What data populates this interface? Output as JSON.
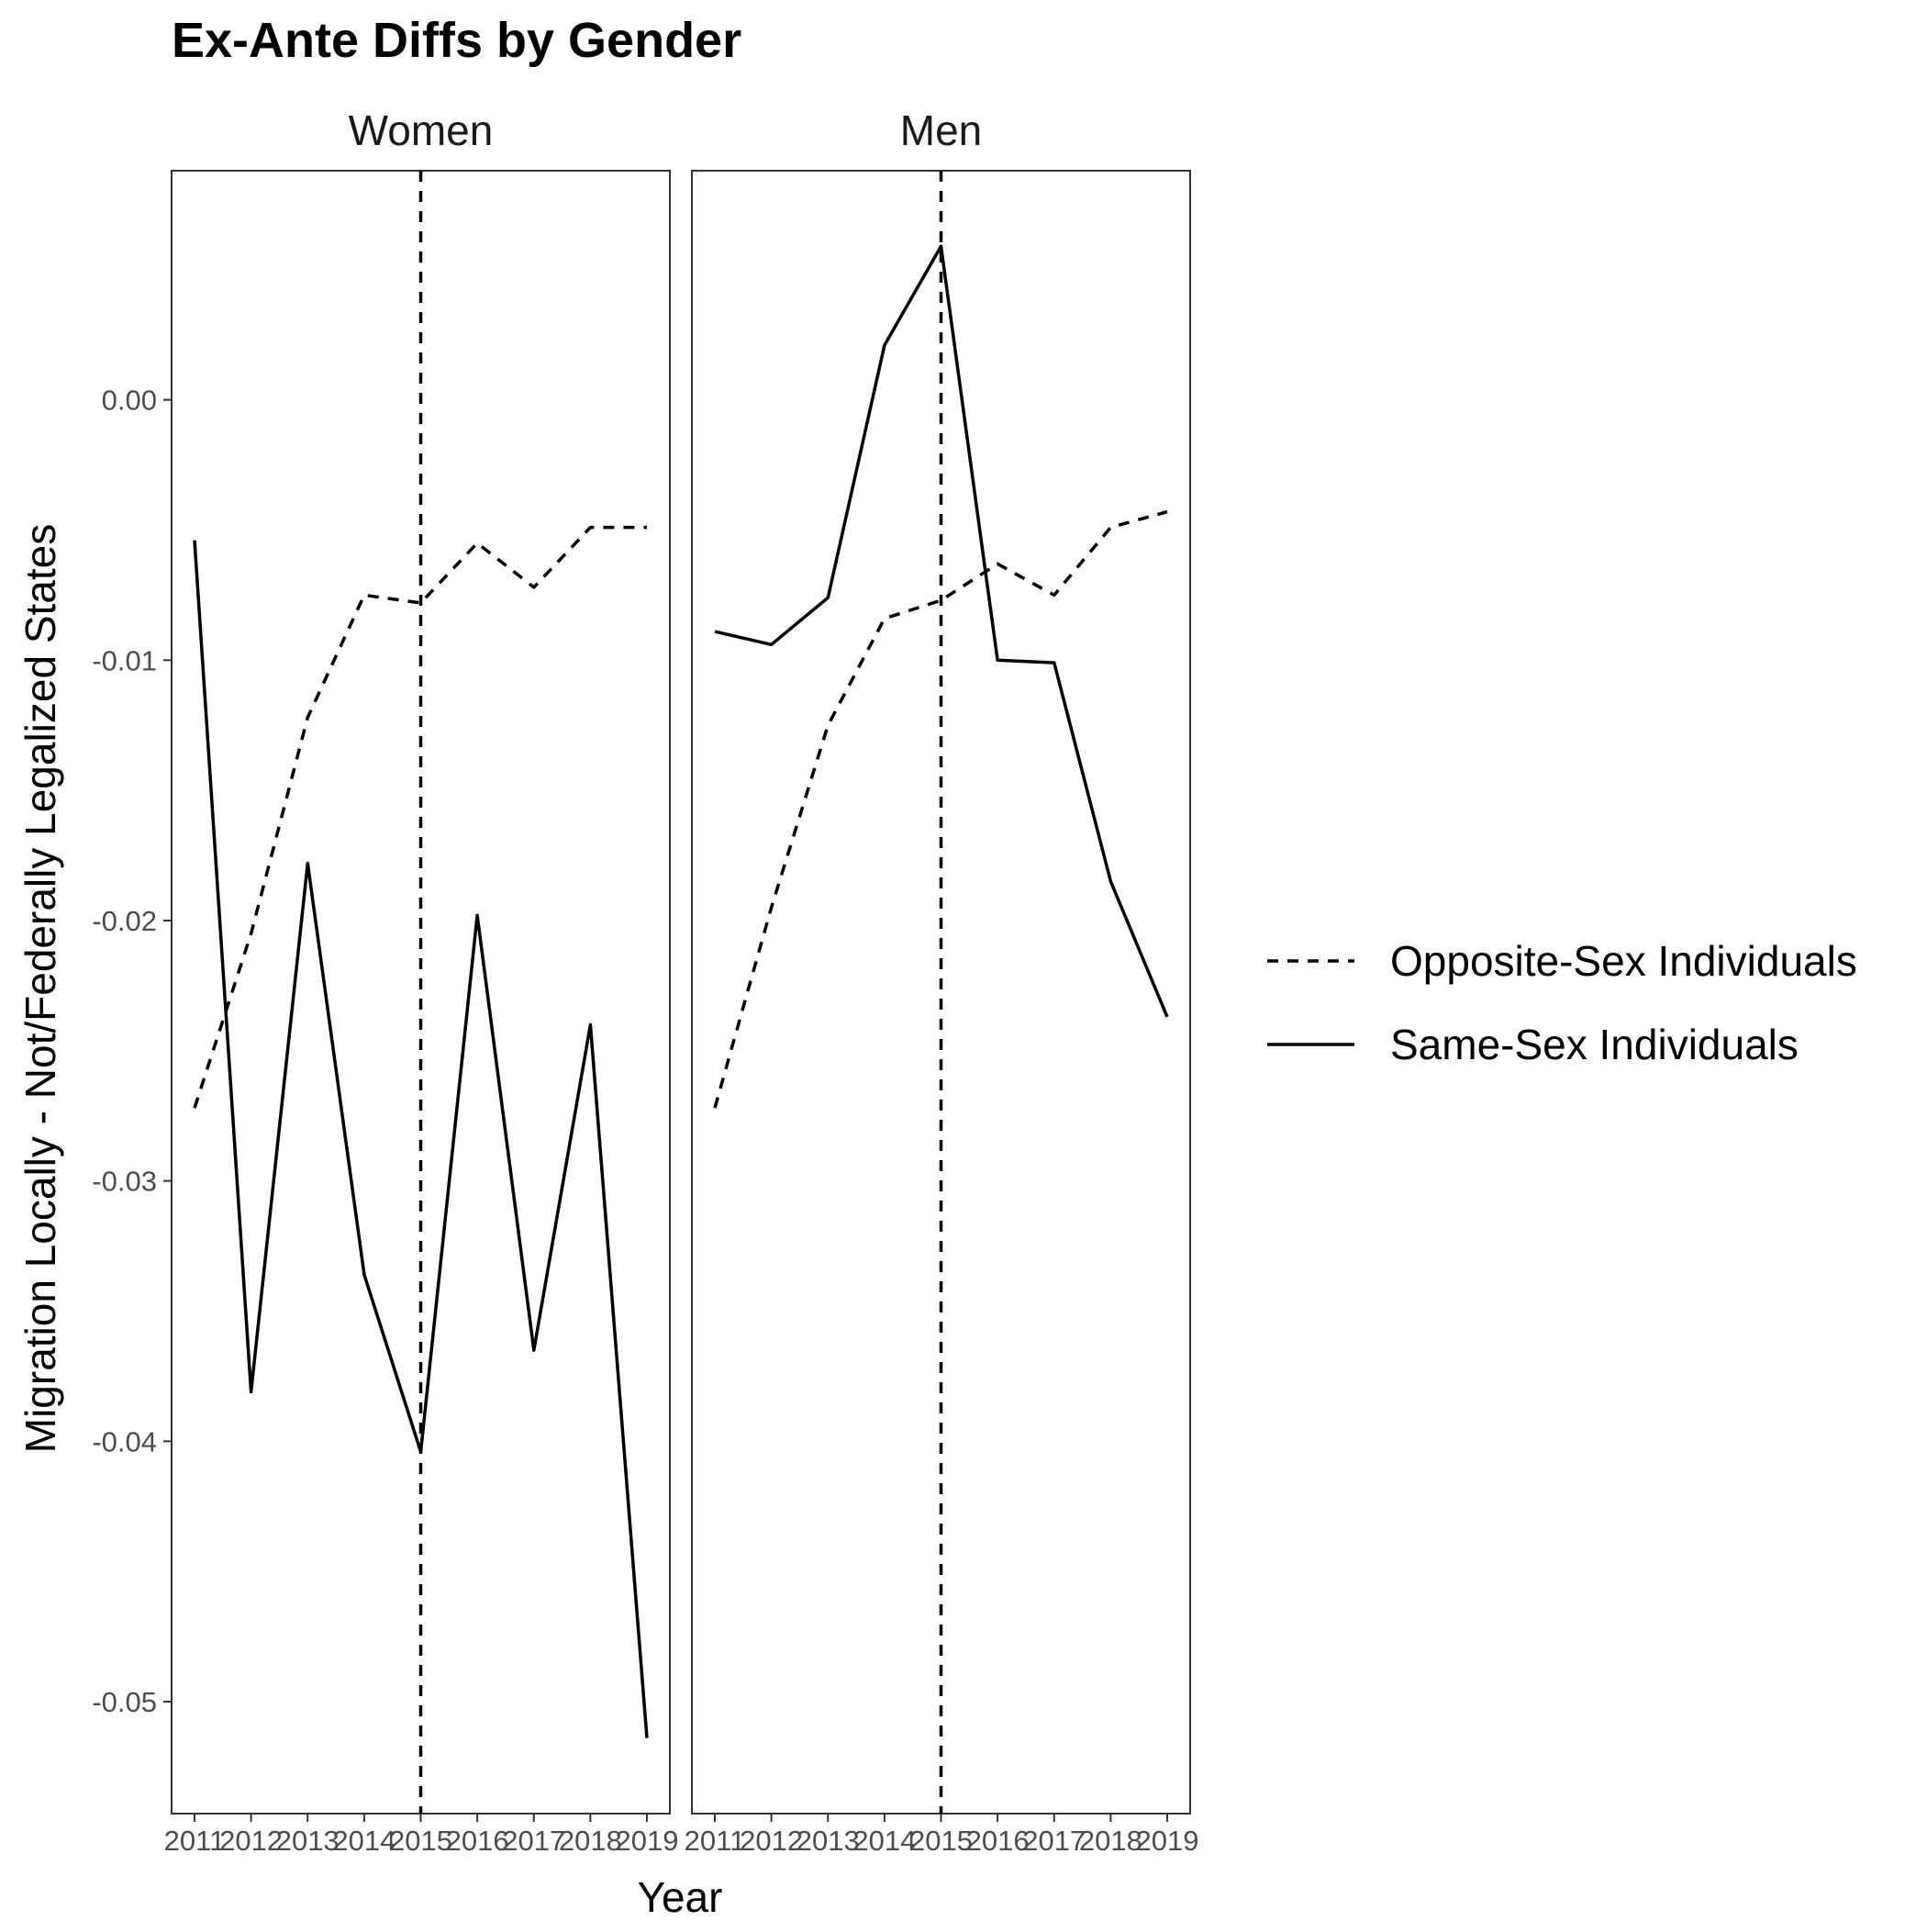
{
  "chart_data": {
    "type": "line",
    "title": "Ex-Ante Diffs by Gender",
    "xlabel": "Year",
    "ylabel": "Migration Locally - Not/Federally Legalized States",
    "x": [
      2011,
      2012,
      2013,
      2014,
      2015,
      2016,
      2017,
      2018,
      2019
    ],
    "xtick_labels": [
      "2011",
      "2012",
      "2013",
      "2014",
      "2015",
      "2016",
      "2017",
      "2018",
      "2019"
    ],
    "ylim": [
      -0.0543,
      0.0088
    ],
    "yticks": [
      0.0,
      -0.01,
      -0.02,
      -0.03,
      -0.04,
      -0.05
    ],
    "ytick_labels": [
      "0.00",
      "-0.01",
      "-0.02",
      "-0.03",
      "-0.04",
      "-0.05"
    ],
    "vline_x": 2015,
    "grid": false,
    "legend_position": "right",
    "facets": [
      {
        "label": "Women",
        "series": [
          {
            "name": "Opposite-Sex Individuals",
            "linetype": "dashed",
            "values": [
              -0.0272,
              -0.0205,
              -0.0122,
              -0.0075,
              -0.0078,
              -0.0055,
              -0.0072,
              -0.0049,
              -0.0049
            ]
          },
          {
            "name": "Same-Sex Individuals",
            "linetype": "solid",
            "values": [
              -0.0054,
              -0.0381,
              -0.0178,
              -0.0336,
              -0.0404,
              -0.0198,
              -0.0365,
              -0.024,
              -0.0514
            ]
          }
        ]
      },
      {
        "label": "Men",
        "series": [
          {
            "name": "Opposite-Sex Individuals",
            "linetype": "dashed",
            "values": [
              -0.0272,
              -0.0195,
              -0.0125,
              -0.0084,
              -0.0077,
              -0.0063,
              -0.0075,
              -0.0049,
              -0.0043
            ]
          },
          {
            "name": "Same-Sex Individuals",
            "linetype": "solid",
            "values": [
              -0.0089,
              -0.0094,
              -0.0076,
              0.0021,
              0.0059,
              -0.01,
              -0.0101,
              -0.0185,
              -0.0237
            ]
          }
        ]
      }
    ],
    "legend": [
      {
        "label": "Opposite-Sex Individuals",
        "linetype": "dashed"
      },
      {
        "label": "Same-Sex Individuals",
        "linetype": "solid"
      }
    ]
  }
}
